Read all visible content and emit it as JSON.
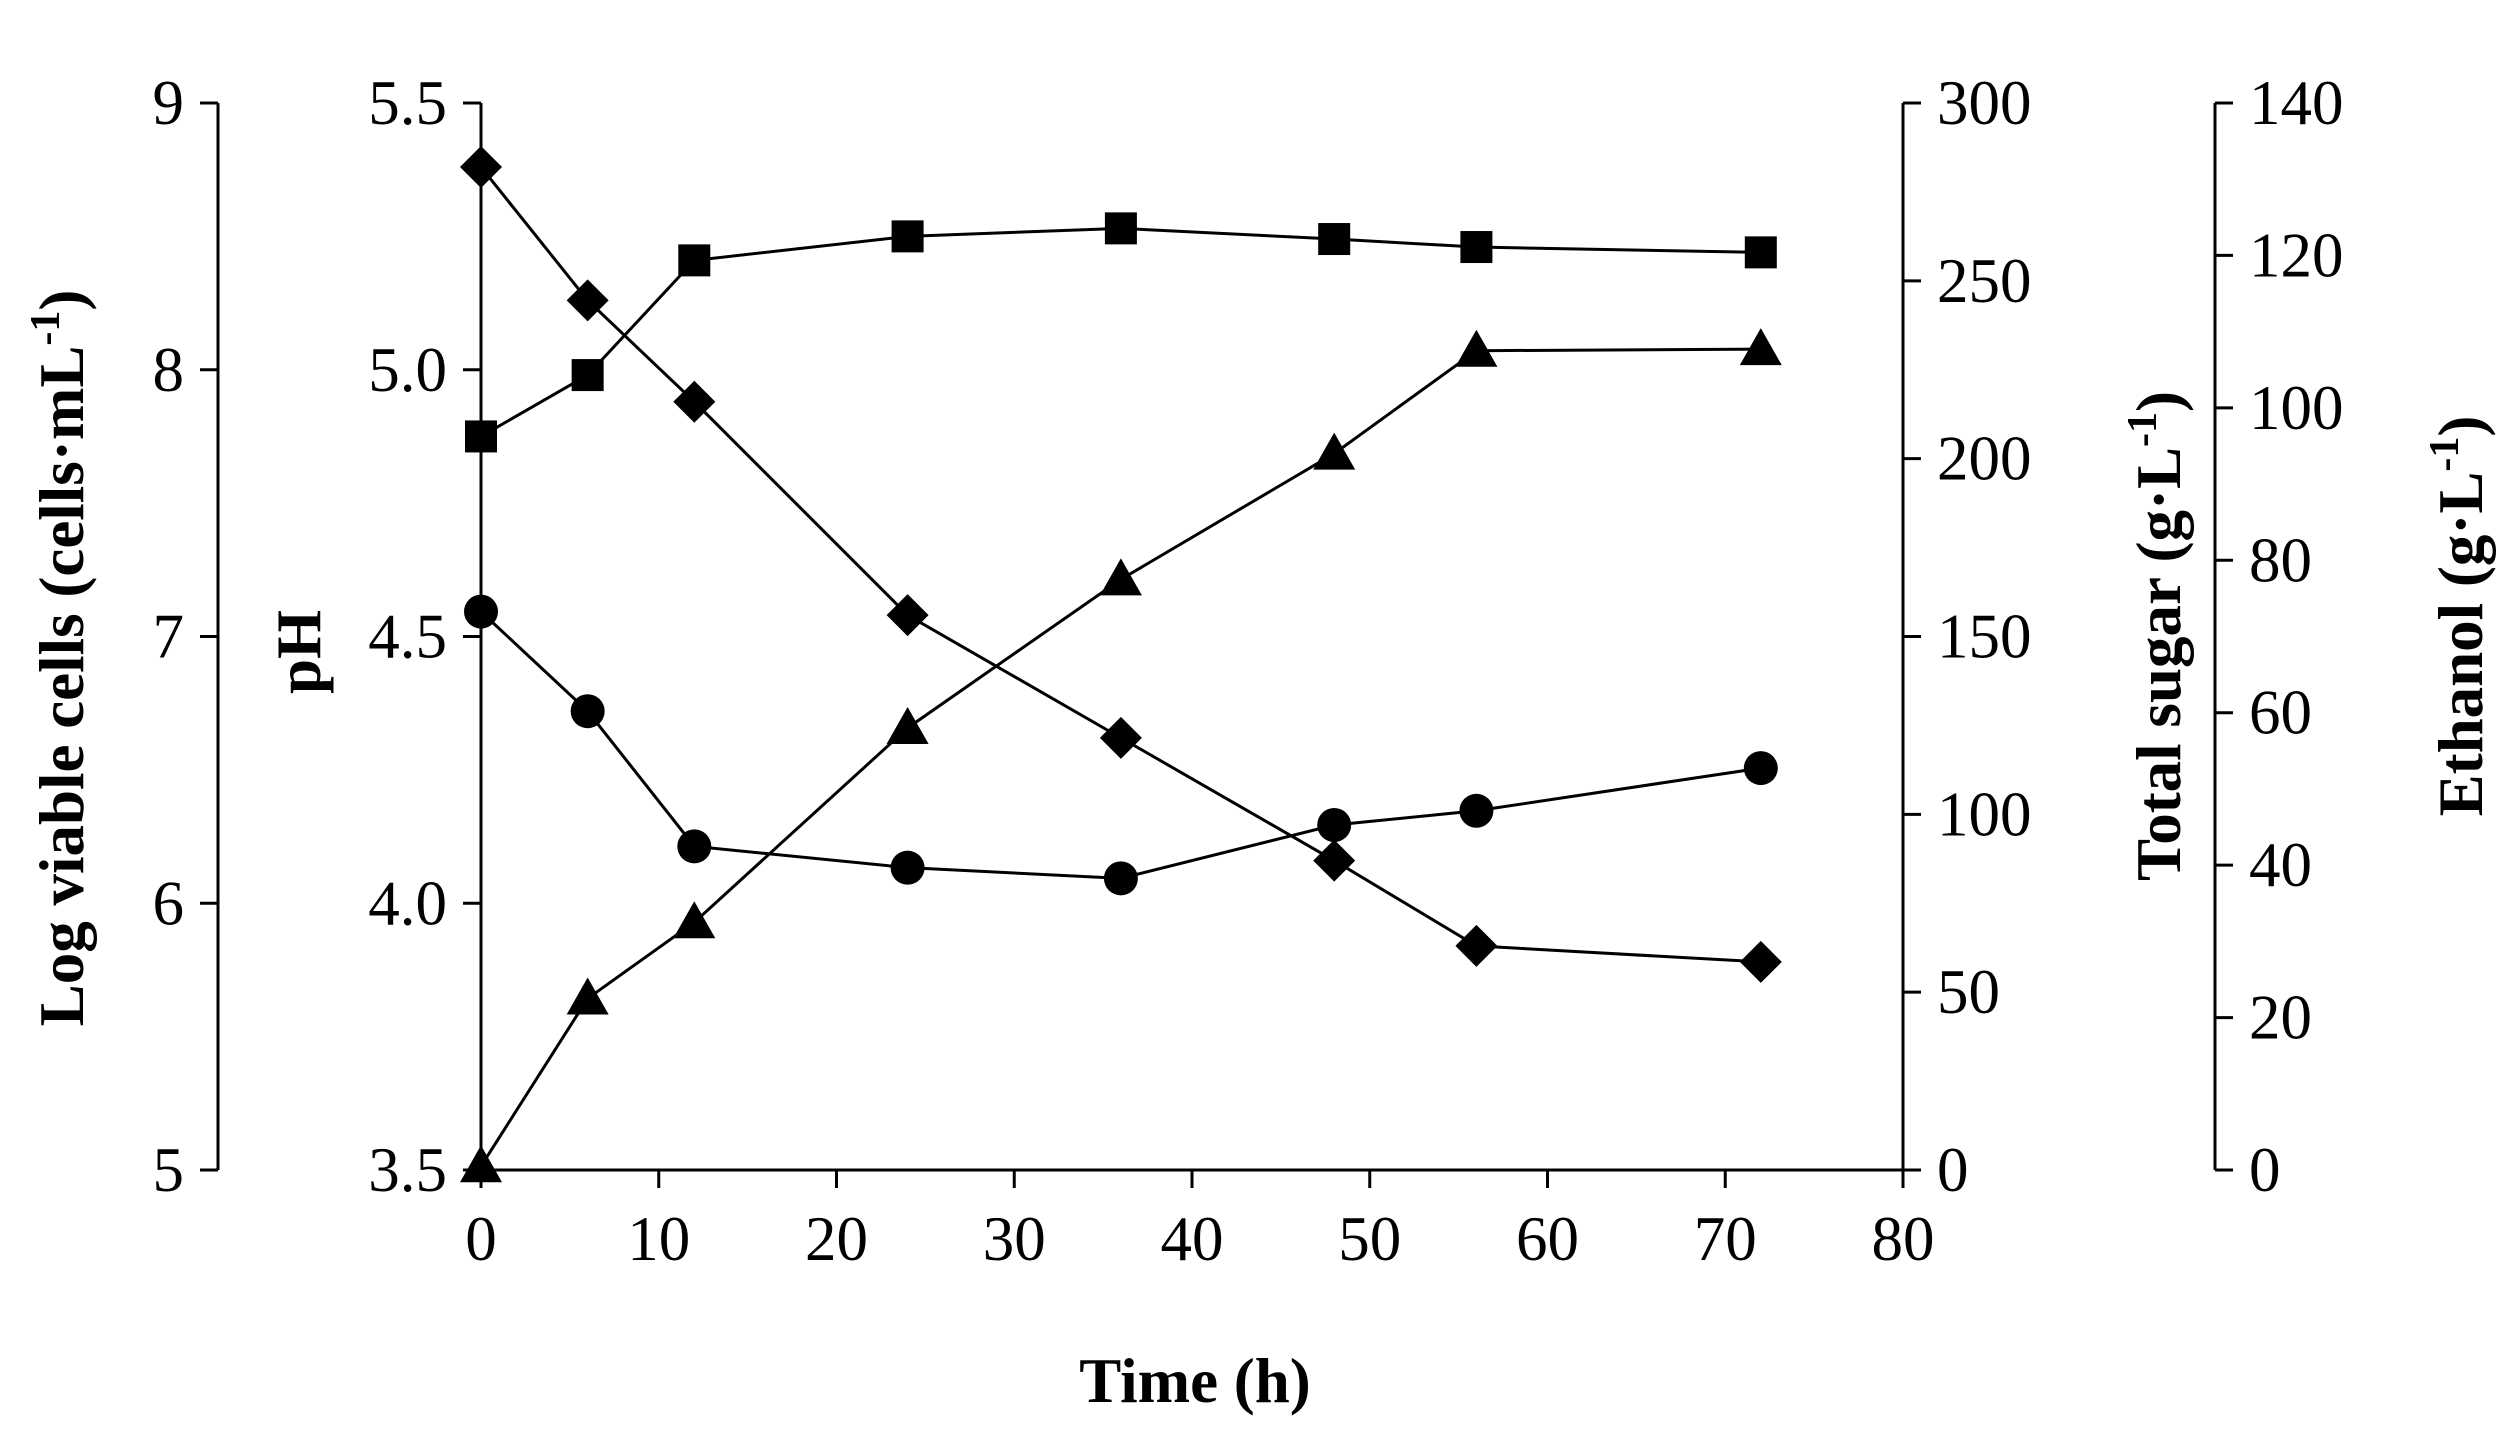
{
  "chart_data": {
    "type": "line",
    "title": "",
    "xlabel": "Time (h)",
    "xlim": [
      0,
      80
    ],
    "xticks": [
      "0",
      "10",
      "20",
      "30",
      "40",
      "50",
      "60",
      "70",
      "80"
    ],
    "axes": {
      "viable": {
        "label_main": "Log viable cells (cells·mL",
        "label_sup": "-1",
        "label_close": ")",
        "range": [
          5,
          9
        ],
        "ticks": [
          "5",
          "6",
          "7",
          "8",
          "9"
        ]
      },
      "ph": {
        "label_main": "pH",
        "label_sup": "",
        "label_close": "",
        "range": [
          3.5,
          5.5
        ],
        "ticks": [
          "3.5",
          "4.0",
          "4.5",
          "5.0",
          "5.5"
        ]
      },
      "sugar": {
        "label_main": "Total sugar (g·L",
        "label_sup": "-1",
        "label_close": ")",
        "range": [
          0,
          300
        ],
        "ticks": [
          "0",
          "50",
          "100",
          "150",
          "200",
          "250",
          "300"
        ]
      },
      "ethanol": {
        "label_main": "Ethanol (g·L",
        "label_sup": "-1",
        "label_close": ")",
        "range": [
          0,
          140
        ],
        "ticks": [
          "0",
          "20",
          "40",
          "60",
          "80",
          "100",
          "120",
          "140"
        ]
      }
    },
    "series": [
      {
        "name": "Log viable cells",
        "axis": "viable",
        "marker": "square",
        "x": [
          0,
          6,
          12,
          24,
          36,
          48,
          56,
          72
        ],
        "values": [
          7.75,
          7.98,
          8.41,
          8.5,
          8.53,
          8.49,
          8.46,
          8.44
        ]
      },
      {
        "name": "pH",
        "axis": "ph",
        "marker": "diamond",
        "x": [
          0,
          6,
          12,
          24,
          36,
          48,
          56,
          72
        ],
        "values": [
          5.38,
          5.13,
          4.94,
          4.54,
          4.31,
          4.08,
          3.92,
          3.89
        ]
      },
      {
        "name": "Total sugar",
        "axis": "sugar",
        "marker": "circle",
        "x": [
          0,
          6,
          12,
          24,
          36,
          48,
          56,
          72
        ],
        "values": [
          157,
          129,
          91,
          85,
          82,
          97,
          101,
          113
        ]
      },
      {
        "name": "Ethanol",
        "axis": "ethanol",
        "marker": "triangle",
        "x": [
          0,
          6,
          12,
          24,
          36,
          48,
          56,
          72
        ],
        "values": [
          0.5,
          22.5,
          32.5,
          58,
          77.5,
          94,
          107.5,
          107.7
        ]
      }
    ]
  }
}
